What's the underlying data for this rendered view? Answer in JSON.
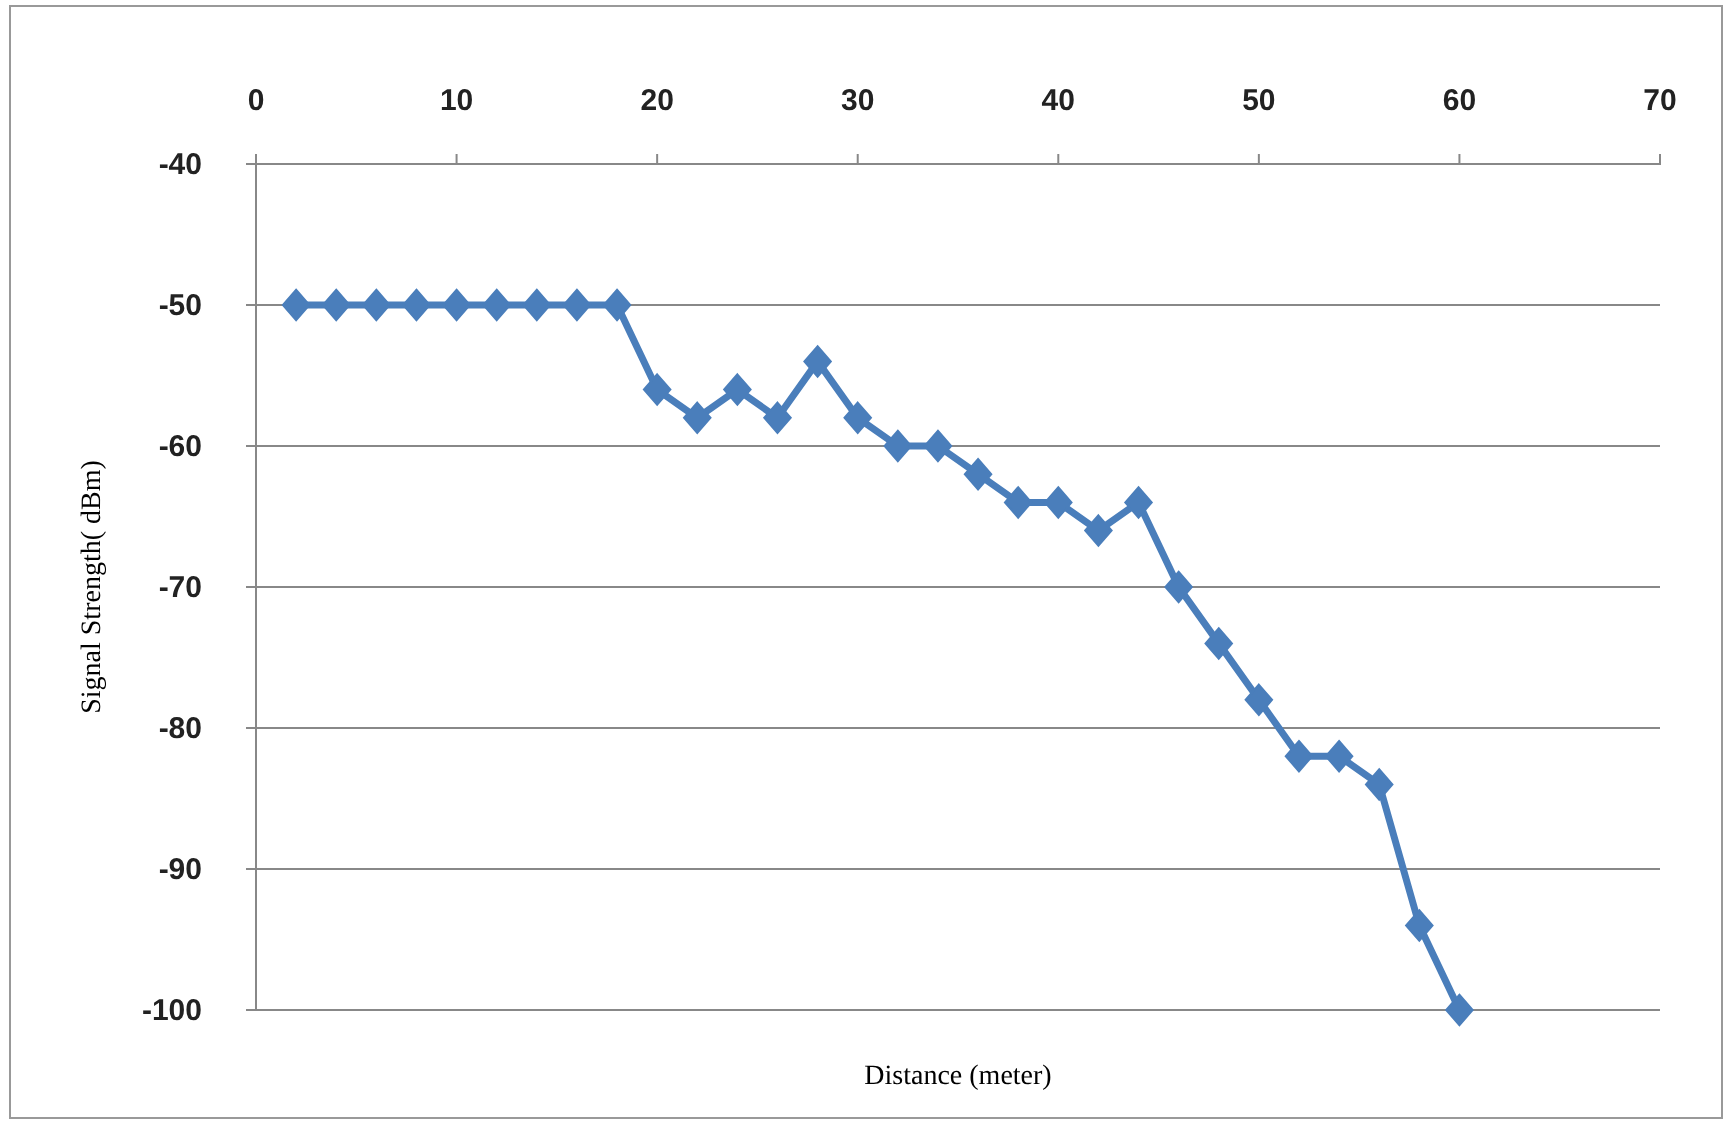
{
  "chart_data": {
    "type": "line",
    "xlabel": "Distance (meter)",
    "ylabel": "Signal Strength( dBm)",
    "x": [
      2,
      4,
      6,
      8,
      10,
      12,
      14,
      16,
      18,
      20,
      22,
      24,
      26,
      28,
      30,
      32,
      34,
      36,
      38,
      40,
      42,
      44,
      46,
      48,
      50,
      52,
      54,
      56,
      58,
      60
    ],
    "series": [
      {
        "color": "#4a7ebb",
        "values": [
          -50,
          -50,
          -50,
          -50,
          -50,
          -50,
          -50,
          -50,
          -50,
          -56,
          -58,
          -56,
          -58,
          -54,
          -58,
          -60,
          -60,
          -62,
          -64,
          -64,
          -66,
          -64,
          -70,
          -74,
          -78,
          -82,
          -82,
          -84,
          -94,
          -100
        ]
      }
    ],
    "xlim": [
      0,
      70
    ],
    "xticks": [
      0,
      10,
      20,
      30,
      40,
      50,
      60,
      70
    ],
    "ylim": [
      -100,
      -40
    ],
    "yticks": [
      -100,
      -90,
      -80,
      -70,
      -60,
      -50,
      -40
    ],
    "grid": "y",
    "marker": "diamond",
    "line_style": "solid"
  }
}
